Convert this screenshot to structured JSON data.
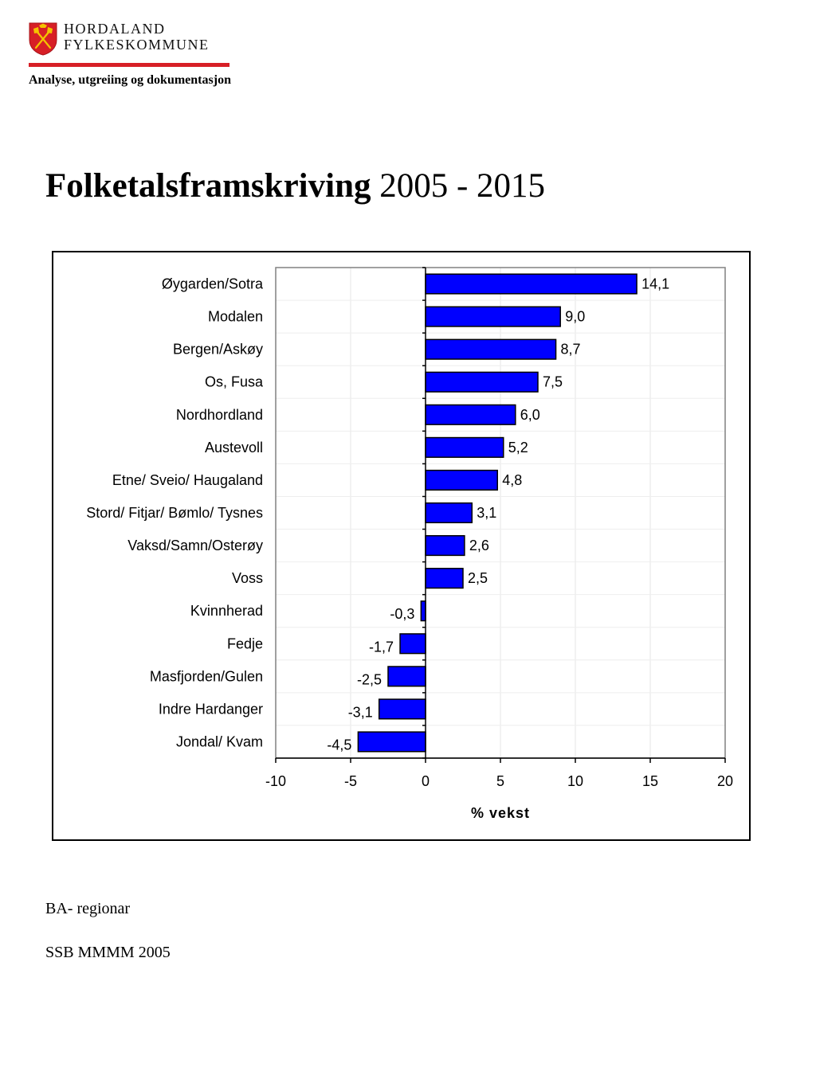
{
  "header": {
    "org_line1": "HORDALAND",
    "org_line2": "FYLKESKOMMUNE",
    "department": "Analyse, utgreiing og dokumentasjon",
    "logo_icon": "coat-of-arms-icon",
    "rule_color": "#d71f26"
  },
  "title": {
    "bold_part": "Folketalsframskriving",
    "normal_part": " 2005 - 2015"
  },
  "chart_data": {
    "type": "bar",
    "orientation": "horizontal",
    "categories": [
      "Øygarden/Sotra",
      "Modalen",
      "Bergen/Askøy",
      "Os, Fusa",
      "Nordhordland",
      "Austevoll",
      "Etne/ Sveio/ Haugaland",
      "Stord/ Fitjar/ Bømlo/ Tysnes",
      "Vaksd/Samn/Osterøy",
      "Voss",
      "Kvinnherad",
      "Fedje",
      "Masfjorden/Gulen",
      "Indre Hardanger",
      "Jondal/ Kvam"
    ],
    "values": [
      14.1,
      9.0,
      8.7,
      7.5,
      6.0,
      5.2,
      4.8,
      3.1,
      2.6,
      2.5,
      -0.3,
      -1.7,
      -2.5,
      -3.1,
      -4.5
    ],
    "value_labels": [
      "14,1",
      "9,0",
      "8,7",
      "7,5",
      "6,0",
      "5,2",
      "4,8",
      "3,1",
      "2,6",
      "2,5",
      "-0,3",
      "-1,7",
      "-2,5",
      "-3,1",
      "-4,5"
    ],
    "xlabel": "% vekst",
    "xlim": [
      -10,
      20
    ],
    "xticks": [
      -10,
      -5,
      0,
      5,
      10,
      15,
      20
    ],
    "grid": true,
    "bar_color": "#0000ff",
    "bar_edge_color": "#000000"
  },
  "footer": {
    "line1": "BA- regionar",
    "line2": "SSB MMMM 2005"
  }
}
